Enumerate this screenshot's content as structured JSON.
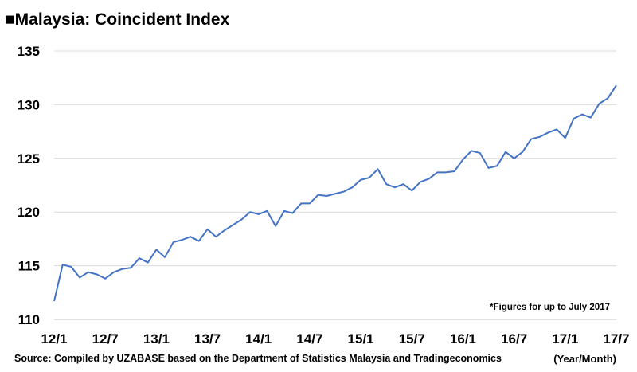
{
  "chart_data": {
    "type": "line",
    "title": "■Malaysia: Coincident Index",
    "xlabel": "(Year/Month)",
    "ylabel": "",
    "note": "*Figures for up to July 2017",
    "source": "Source: Compiled by UZABASE based on the Department of Statistics Malaysia and Tradingeconomics",
    "ylim": [
      110,
      135
    ],
    "yticks": [
      110,
      115,
      120,
      125,
      130,
      135
    ],
    "xtick_labels": [
      "12/1",
      "12/7",
      "13/1",
      "13/7",
      "14/1",
      "14/7",
      "15/1",
      "15/7",
      "16/1",
      "16/7",
      "17/1",
      "17/7"
    ],
    "grid": true,
    "line_color": "#4472c4",
    "series": [
      {
        "values": [
          111.7,
          115.1,
          114.9,
          113.9,
          114.4,
          114.2,
          113.8,
          114.4,
          114.7,
          114.8,
          115.7,
          115.3,
          116.5,
          115.8,
          117.2,
          117.4,
          117.7,
          117.3,
          118.4,
          117.7,
          118.3,
          118.8,
          119.3,
          120.0,
          119.8,
          120.1,
          118.7,
          120.1,
          119.9,
          120.8,
          120.8,
          121.6,
          121.5,
          121.7,
          121.9,
          122.3,
          123.0,
          123.2,
          124.0,
          122.6,
          122.3,
          122.6,
          122.0,
          122.8,
          123.1,
          123.7,
          123.7,
          123.8,
          124.9,
          125.7,
          125.5,
          124.1,
          124.3,
          125.6,
          125.0,
          125.6,
          126.8,
          127.0,
          127.4,
          127.7,
          126.9,
          128.7,
          129.1,
          128.8,
          130.1,
          130.6,
          131.8
        ]
      }
    ]
  }
}
